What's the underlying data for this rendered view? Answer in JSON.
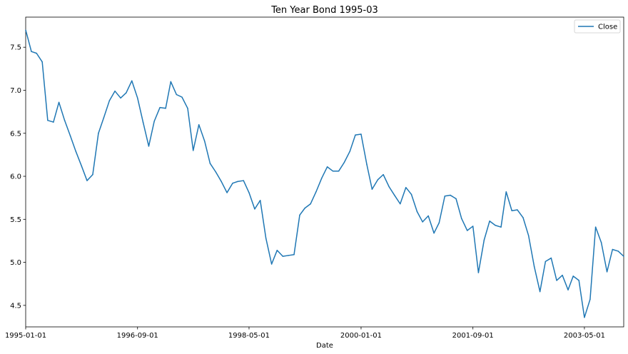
{
  "chart_data": {
    "type": "line",
    "title": "Ten Year Bond 1995-03",
    "xlabel": "Date",
    "ylabel": "",
    "legend": {
      "placement": "top-right",
      "entries": [
        "Close"
      ]
    },
    "grid": false,
    "xlim": [
      "1995-01-01",
      "2003-12-01"
    ],
    "ylim": [
      4.25,
      7.85
    ],
    "x_ticks": [
      "1995-01-01",
      "1996-09-01",
      "1998-05-01",
      "2000-01-01",
      "2001-09-01",
      "2003-05-01"
    ],
    "y_ticks": [
      "4.5",
      "5.0",
      "5.5",
      "6.0",
      "6.5",
      "7.0",
      "7.5"
    ],
    "series": [
      {
        "name": "Close",
        "color": "#1f77b4",
        "x": [
          "1995-01-01",
          "1995-02-01",
          "1995-03-01",
          "1995-04-01",
          "1995-05-01",
          "1995-06-01",
          "1995-07-01",
          "1995-08-01",
          "1995-09-01",
          "1995-10-01",
          "1995-11-01",
          "1995-12-01",
          "1996-01-01",
          "1996-02-01",
          "1996-03-01",
          "1996-04-01",
          "1996-05-01",
          "1996-06-01",
          "1996-07-01",
          "1996-08-01",
          "1996-09-01",
          "1996-10-01",
          "1996-11-01",
          "1996-12-01",
          "1997-01-01",
          "1997-02-01",
          "1997-03-01",
          "1997-04-01",
          "1997-05-01",
          "1997-06-01",
          "1997-07-01",
          "1997-08-01",
          "1997-09-01",
          "1997-10-01",
          "1997-11-01",
          "1997-12-01",
          "1998-01-01",
          "1998-02-01",
          "1998-03-01",
          "1998-04-01",
          "1998-05-01",
          "1998-06-01",
          "1998-07-01",
          "1998-08-01",
          "1998-09-01",
          "1998-10-01",
          "1998-11-01",
          "1998-12-01",
          "1999-01-01",
          "1999-02-01",
          "1999-03-01",
          "1999-04-01",
          "1999-05-01",
          "1999-06-01",
          "1999-07-01",
          "1999-08-01",
          "1999-09-01",
          "1999-10-01",
          "1999-11-01",
          "1999-12-01",
          "2000-01-01",
          "2000-02-01",
          "2000-03-01",
          "2000-04-01",
          "2000-05-01",
          "2000-06-01",
          "2000-07-01",
          "2000-08-01",
          "2000-09-01",
          "2000-10-01",
          "2000-11-01",
          "2000-12-01",
          "2001-01-01",
          "2001-02-01",
          "2001-03-01",
          "2001-04-01",
          "2001-05-01",
          "2001-06-01",
          "2001-07-01",
          "2001-08-01",
          "2001-09-01",
          "2001-10-01",
          "2001-11-01",
          "2001-12-01",
          "2002-01-01",
          "2002-02-01",
          "2002-03-01",
          "2002-04-01",
          "2002-05-01",
          "2002-06-01",
          "2002-07-01",
          "2002-08-01",
          "2002-09-01",
          "2002-10-01",
          "2002-11-01",
          "2002-12-01",
          "2003-01-01",
          "2003-02-01",
          "2003-03-01",
          "2003-04-01",
          "2003-05-01",
          "2003-06-01",
          "2003-07-01",
          "2003-08-01",
          "2003-09-01",
          "2003-10-01",
          "2003-11-01",
          "2003-12-01"
        ],
        "values": [
          7.7,
          7.45,
          7.43,
          7.33,
          6.65,
          6.63,
          6.86,
          6.65,
          6.47,
          6.29,
          6.12,
          5.95,
          6.02,
          6.5,
          6.68,
          6.88,
          6.99,
          6.91,
          6.97,
          7.11,
          6.91,
          6.63,
          6.35,
          6.64,
          6.8,
          6.79,
          7.1,
          6.95,
          6.92,
          6.79,
          6.3,
          6.6,
          6.41,
          6.15,
          6.05,
          5.94,
          5.81,
          5.92,
          5.94,
          5.95,
          5.81,
          5.62,
          5.72,
          5.28,
          4.98,
          5.14,
          5.07,
          5.08,
          5.09,
          5.55,
          5.63,
          5.68,
          5.82,
          5.98,
          6.11,
          6.06,
          6.06,
          6.16,
          6.29,
          6.48,
          6.49,
          6.14,
          5.85,
          5.96,
          6.02,
          5.88,
          5.78,
          5.68,
          5.87,
          5.79,
          5.59,
          5.47,
          5.54,
          5.34,
          5.46,
          5.77,
          5.78,
          5.74,
          5.51,
          5.37,
          5.42,
          4.88,
          5.26,
          5.48,
          5.43,
          5.41,
          5.82,
          5.6,
          5.61,
          5.52,
          5.31,
          4.95,
          4.66,
          5.01,
          5.05,
          4.79,
          4.85,
          4.68,
          4.84,
          4.79,
          4.36,
          4.57,
          5.41,
          5.23,
          4.89,
          5.15,
          5.13,
          5.07
        ]
      }
    ]
  }
}
